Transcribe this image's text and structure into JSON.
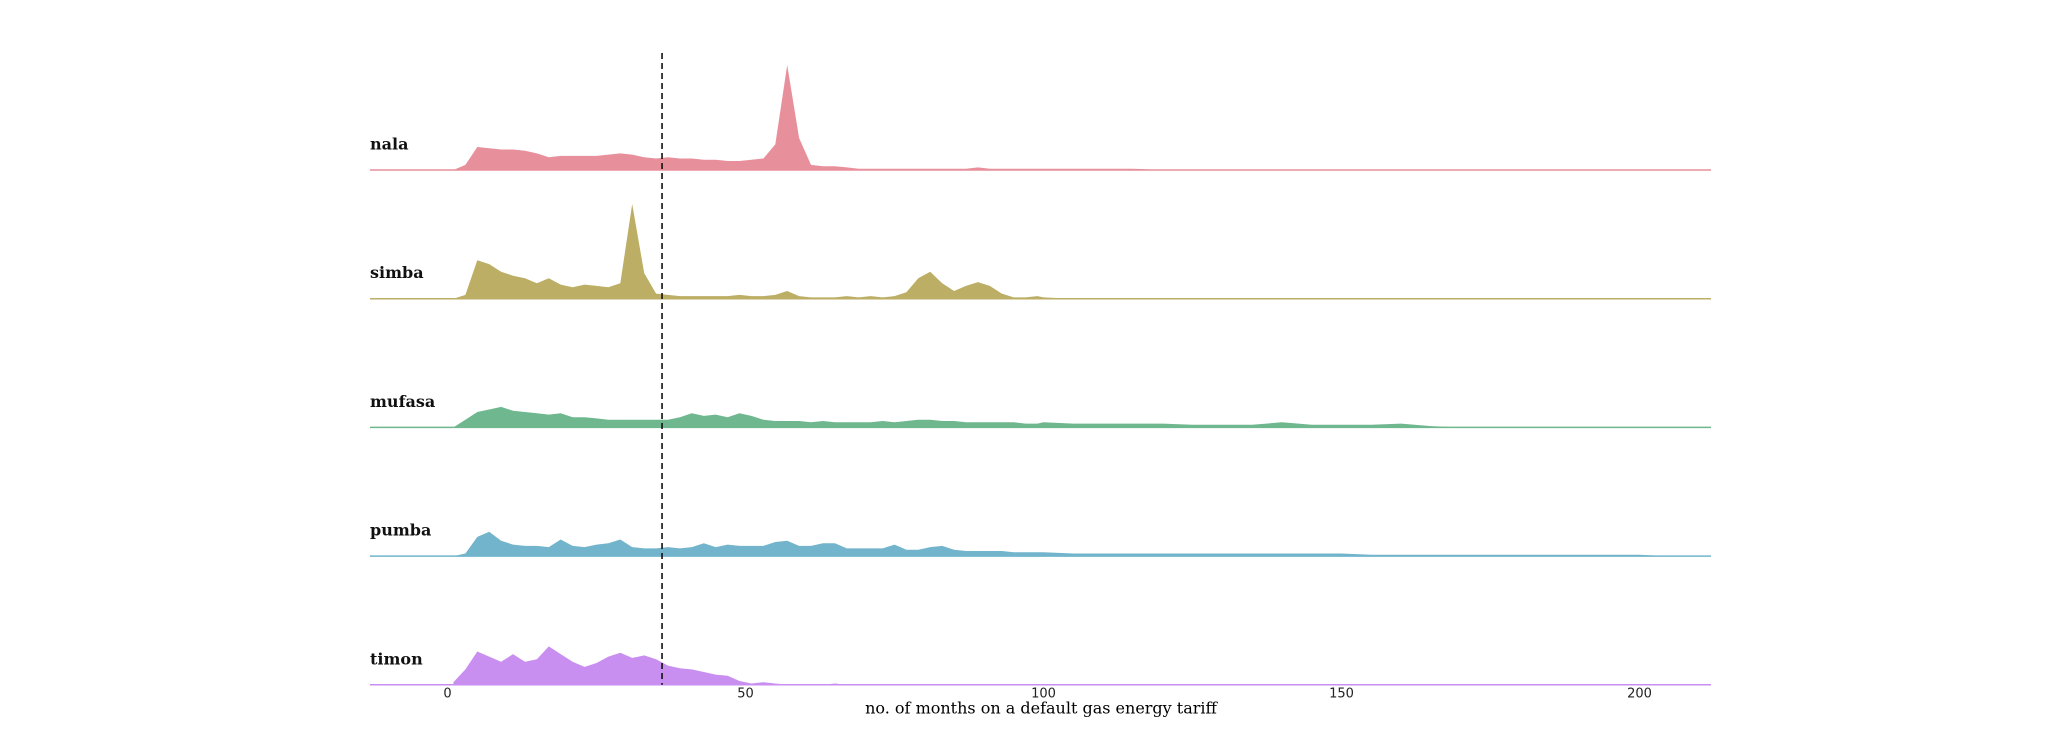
{
  "chart_data": {
    "type": "ridgeline",
    "xlabel": "no. of months on a default gas energy tariff",
    "xlim": [
      -13,
      212
    ],
    "xticks": [
      0,
      50,
      100,
      150,
      200
    ],
    "ylim": [
      0,
      0.1
    ],
    "vline": 36,
    "x": [
      1,
      3,
      5,
      7,
      9,
      11,
      13,
      15,
      17,
      19,
      21,
      23,
      25,
      27,
      29,
      31,
      33,
      35,
      37,
      39,
      41,
      43,
      45,
      47,
      49,
      51,
      53,
      55,
      57,
      59,
      61,
      63,
      65,
      67,
      69,
      71,
      73,
      75,
      77,
      79,
      81,
      83,
      85,
      87,
      89,
      91,
      93,
      95,
      97,
      99,
      100,
      105,
      110,
      115,
      120,
      125,
      130,
      135,
      140,
      145,
      150,
      155,
      160,
      165,
      170,
      175,
      180,
      185,
      190,
      195,
      200,
      205,
      210
    ],
    "series": [
      {
        "name": "nala",
        "color": "#e88f9c",
        "values": [
          0,
          0.004,
          0.018,
          0.017,
          0.016,
          0.016,
          0.015,
          0.013,
          0.01,
          0.011,
          0.011,
          0.011,
          0.011,
          0.012,
          0.013,
          0.012,
          0.01,
          0.009,
          0.01,
          0.009,
          0.009,
          0.008,
          0.008,
          0.007,
          0.007,
          0.008,
          0.009,
          0.02,
          0.082,
          0.025,
          0.004,
          0.003,
          0.003,
          0.002,
          0.001,
          0.001,
          0.001,
          0.001,
          0.001,
          0.001,
          0.001,
          0.001,
          0.001,
          0.001,
          0.002,
          0.001,
          0.001,
          0.001,
          0.001,
          0.001,
          0.001,
          0.001,
          0.001,
          0.001,
          0,
          0,
          0,
          0,
          0,
          0,
          0,
          0,
          0,
          0,
          0,
          0,
          0,
          0,
          0,
          0,
          0,
          0,
          0
        ]
      },
      {
        "name": "simba",
        "color": "#bcae64",
        "values": [
          0,
          0.003,
          0.03,
          0.027,
          0.021,
          0.018,
          0.016,
          0.012,
          0.016,
          0.011,
          0.009,
          0.011,
          0.01,
          0.009,
          0.012,
          0.074,
          0.02,
          0.004,
          0.003,
          0.002,
          0.002,
          0.002,
          0.002,
          0.002,
          0.003,
          0.002,
          0.002,
          0.003,
          0.006,
          0.002,
          0.001,
          0.001,
          0.001,
          0.002,
          0.001,
          0.002,
          0.001,
          0.002,
          0.005,
          0.016,
          0.021,
          0.012,
          0.006,
          0.01,
          0.013,
          0.01,
          0.004,
          0.001,
          0.001,
          0.002,
          0.001,
          0,
          0,
          0,
          0,
          0,
          0,
          0,
          0,
          0,
          0,
          0,
          0,
          0,
          0,
          0,
          0,
          0,
          0,
          0,
          0,
          0,
          0
        ]
      },
      {
        "name": "mufasa",
        "color": "#6fb78e",
        "values": [
          0,
          0.006,
          0.012,
          0.014,
          0.016,
          0.013,
          0.012,
          0.011,
          0.01,
          0.011,
          0.008,
          0.008,
          0.007,
          0.006,
          0.006,
          0.006,
          0.006,
          0.006,
          0.006,
          0.008,
          0.011,
          0.009,
          0.01,
          0.008,
          0.011,
          0.009,
          0.006,
          0.005,
          0.005,
          0.005,
          0.004,
          0.005,
          0.004,
          0.004,
          0.004,
          0.004,
          0.005,
          0.004,
          0.005,
          0.006,
          0.006,
          0.005,
          0.005,
          0.004,
          0.004,
          0.004,
          0.004,
          0.004,
          0.003,
          0.003,
          0.004,
          0.003,
          0.003,
          0.003,
          0.003,
          0.002,
          0.002,
          0.002,
          0.004,
          0.002,
          0.002,
          0.002,
          0.003,
          0.001,
          0,
          0,
          0,
          0,
          0,
          0,
          0,
          0,
          0
        ]
      },
      {
        "name": "pumba",
        "color": "#72b4cb",
        "values": [
          0,
          0.002,
          0.015,
          0.019,
          0.012,
          0.009,
          0.008,
          0.008,
          0.007,
          0.013,
          0.008,
          0.007,
          0.009,
          0.01,
          0.013,
          0.007,
          0.006,
          0.006,
          0.007,
          0.006,
          0.007,
          0.01,
          0.007,
          0.009,
          0.008,
          0.008,
          0.008,
          0.011,
          0.012,
          0.008,
          0.008,
          0.01,
          0.01,
          0.006,
          0.006,
          0.006,
          0.006,
          0.009,
          0.005,
          0.005,
          0.007,
          0.008,
          0.005,
          0.004,
          0.004,
          0.004,
          0.004,
          0.003,
          0.003,
          0.003,
          0.003,
          0.002,
          0.002,
          0.002,
          0.002,
          0.002,
          0.002,
          0.002,
          0.002,
          0.002,
          0.002,
          0.001,
          0.001,
          0.001,
          0.001,
          0.001,
          0.001,
          0.001,
          0.001,
          0.001,
          0.001,
          0,
          0
        ]
      },
      {
        "name": "timon",
        "color": "#c98ff0",
        "values": [
          0.002,
          0.012,
          0.026,
          0.022,
          0.018,
          0.024,
          0.018,
          0.02,
          0.03,
          0.024,
          0.018,
          0.014,
          0.017,
          0.022,
          0.025,
          0.021,
          0.023,
          0.02,
          0.015,
          0.013,
          0.012,
          0.01,
          0.008,
          0.007,
          0.003,
          0.001,
          0.002,
          0.001,
          0,
          0,
          0,
          0,
          0.001,
          0,
          0,
          0,
          0,
          0,
          0,
          0,
          0,
          0,
          0,
          0,
          0,
          0,
          0,
          0,
          0,
          0,
          0,
          0,
          0,
          0,
          0,
          0,
          0,
          0,
          0,
          0,
          0,
          0,
          0,
          0,
          0,
          0,
          0,
          0,
          0,
          0,
          0,
          0,
          0
        ]
      }
    ]
  }
}
